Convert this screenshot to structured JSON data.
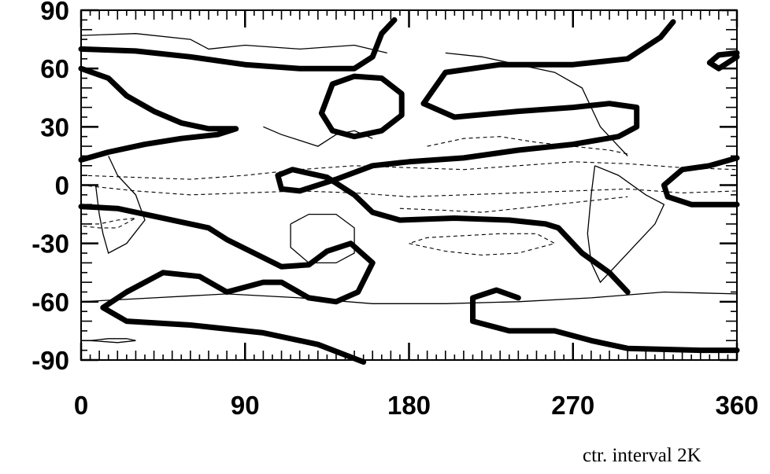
{
  "chart_data": {
    "type": "contour",
    "title": "",
    "xlabel": "",
    "ylabel": "",
    "xlim": [
      0,
      360
    ],
    "ylim": [
      -90,
      90
    ],
    "x_ticks": [
      "0",
      "90",
      "180",
      "270",
      "360"
    ],
    "y_ticks": [
      "90",
      "60",
      "30",
      "0",
      "-30",
      "-60",
      "-90"
    ],
    "annotation": "ctr. interval 2K",
    "contour_interval_K": 2,
    "grid": false,
    "series": [
      {
        "style": "thick",
        "points": [
          [
            0,
            70
          ],
          [
            30,
            69
          ],
          [
            60,
            66
          ],
          [
            90,
            62
          ],
          [
            120,
            60
          ],
          [
            150,
            60
          ],
          [
            160,
            66
          ],
          [
            165,
            78
          ],
          [
            172,
            85
          ]
        ]
      },
      {
        "style": "thick",
        "points": [
          [
            0,
            60
          ],
          [
            15,
            55
          ],
          [
            25,
            46
          ],
          [
            40,
            38
          ],
          [
            55,
            32
          ],
          [
            70,
            29
          ],
          [
            85,
            29
          ],
          [
            75,
            26
          ],
          [
            55,
            24
          ],
          [
            35,
            21
          ],
          [
            15,
            17
          ],
          [
            0,
            13
          ]
        ]
      },
      {
        "style": "thick",
        "points": [
          [
            138,
            52
          ],
          [
            150,
            56
          ],
          [
            165,
            55
          ],
          [
            176,
            47
          ],
          [
            176,
            36
          ],
          [
            165,
            28
          ],
          [
            150,
            25
          ],
          [
            138,
            28
          ],
          [
            132,
            37
          ],
          [
            138,
            52
          ]
        ]
      },
      {
        "style": "thick",
        "points": [
          [
            188,
            42
          ],
          [
            200,
            58
          ],
          [
            230,
            62
          ],
          [
            270,
            62
          ],
          [
            300,
            65
          ],
          [
            318,
            76
          ],
          [
            325,
            84
          ]
        ]
      },
      {
        "style": "thick",
        "points": [
          [
            188,
            42
          ],
          [
            205,
            35
          ],
          [
            240,
            38
          ],
          [
            270,
            40
          ],
          [
            290,
            42
          ],
          [
            305,
            40
          ],
          [
            305,
            30
          ],
          [
            295,
            25
          ],
          [
            270,
            21
          ],
          [
            240,
            18
          ],
          [
            210,
            14
          ],
          [
            180,
            12
          ],
          [
            160,
            10
          ],
          [
            140,
            3
          ],
          [
            120,
            -3
          ],
          [
            110,
            -2
          ],
          [
            108,
            5
          ],
          [
            116,
            8
          ],
          [
            135,
            4
          ],
          [
            150,
            -5
          ],
          [
            160,
            -14
          ],
          [
            175,
            -18
          ],
          [
            205,
            -17
          ],
          [
            235,
            -18
          ],
          [
            255,
            -20
          ],
          [
            262,
            -22
          ],
          [
            275,
            -35
          ],
          [
            290,
            -45
          ],
          [
            300,
            -55
          ]
        ]
      },
      {
        "style": "thick",
        "points": [
          [
            0,
            -11
          ],
          [
            20,
            -12
          ],
          [
            40,
            -16
          ],
          [
            60,
            -20
          ],
          [
            70,
            -22
          ],
          [
            80,
            -28
          ],
          [
            95,
            -35
          ],
          [
            110,
            -42
          ],
          [
            125,
            -41
          ],
          [
            135,
            -34
          ],
          [
            148,
            -30
          ],
          [
            160,
            -40
          ],
          [
            152,
            -55
          ],
          [
            140,
            -60
          ],
          [
            125,
            -58
          ],
          [
            110,
            -50
          ],
          [
            100,
            -50
          ],
          [
            80,
            -55
          ],
          [
            65,
            -47
          ],
          [
            45,
            -45
          ],
          [
            25,
            -55
          ],
          [
            12,
            -63
          ],
          [
            25,
            -70
          ],
          [
            60,
            -72
          ],
          [
            100,
            -76
          ],
          [
            130,
            -82
          ],
          [
            155,
            -91
          ]
        ]
      },
      {
        "style": "thick",
        "points": [
          [
            240,
            -58
          ],
          [
            228,
            -54
          ],
          [
            215,
            -58
          ],
          [
            215,
            -70
          ],
          [
            235,
            -75
          ],
          [
            260,
            -75
          ],
          [
            280,
            -80
          ],
          [
            300,
            -84
          ],
          [
            340,
            -85
          ],
          [
            360,
            -85
          ]
        ]
      },
      {
        "style": "thick",
        "points": [
          [
            360,
            14
          ],
          [
            345,
            10
          ],
          [
            330,
            8
          ],
          [
            320,
            0
          ],
          [
            322,
            -6
          ],
          [
            335,
            -10
          ],
          [
            360,
            -10
          ]
        ]
      },
      {
        "style": "thick",
        "points": [
          [
            360,
            66
          ],
          [
            350,
            60
          ],
          [
            345,
            63
          ],
          [
            350,
            67
          ],
          [
            360,
            68
          ]
        ]
      },
      {
        "style": "thin",
        "points": [
          [
            0,
            -60
          ],
          [
            40,
            -58
          ],
          [
            80,
            -56
          ],
          [
            120,
            -58
          ],
          [
            160,
            -61
          ],
          [
            200,
            -61
          ],
          [
            240,
            -60
          ],
          [
            280,
            -58
          ],
          [
            320,
            -55
          ],
          [
            360,
            -56
          ]
        ]
      },
      {
        "style": "thin",
        "points": [
          [
            5,
            -80
          ],
          [
            15,
            -79
          ],
          [
            25,
            -79
          ],
          [
            30,
            -80
          ],
          [
            20,
            -81
          ],
          [
            5,
            -80
          ]
        ]
      },
      {
        "style": "thin",
        "points": [
          [
            0,
            77
          ],
          [
            30,
            78
          ],
          [
            60,
            75
          ],
          [
            70,
            70
          ],
          [
            90,
            72
          ],
          [
            120,
            70
          ],
          [
            150,
            72
          ],
          [
            168,
            68
          ]
        ]
      },
      {
        "style": "thin",
        "points": [
          [
            100,
            30
          ],
          [
            110,
            26
          ],
          [
            120,
            23
          ],
          [
            130,
            20
          ],
          [
            140,
            26
          ],
          [
            150,
            28
          ],
          [
            160,
            24
          ]
        ]
      },
      {
        "style": "thin",
        "points": [
          [
            15,
            15
          ],
          [
            20,
            5
          ],
          [
            30,
            -5
          ],
          [
            35,
            -18
          ],
          [
            25,
            -30
          ],
          [
            15,
            -35
          ],
          [
            12,
            -25
          ],
          [
            10,
            -15
          ],
          [
            8,
            0
          ]
        ]
      },
      {
        "style": "thin",
        "points": [
          [
            115,
            -20
          ],
          [
            125,
            -15
          ],
          [
            140,
            -15
          ],
          [
            150,
            -22
          ],
          [
            150,
            -35
          ],
          [
            140,
            -40
          ],
          [
            125,
            -40
          ],
          [
            115,
            -32
          ],
          [
            115,
            -20
          ]
        ]
      },
      {
        "style": "thin",
        "points": [
          [
            282,
            10
          ],
          [
            295,
            5
          ],
          [
            310,
            -5
          ],
          [
            320,
            -10
          ],
          [
            315,
            -20
          ],
          [
            305,
            -30
          ],
          [
            295,
            -40
          ],
          [
            285,
            -50
          ],
          [
            280,
            -40
          ],
          [
            278,
            -25
          ],
          [
            280,
            -5
          ],
          [
            282,
            10
          ]
        ]
      },
      {
        "style": "thin",
        "points": [
          [
            200,
            68
          ],
          [
            220,
            66
          ],
          [
            240,
            62
          ],
          [
            260,
            58
          ],
          [
            275,
            50
          ],
          [
            280,
            40
          ],
          [
            285,
            30
          ],
          [
            295,
            20
          ],
          [
            300,
            15
          ]
        ]
      },
      {
        "style": "dashed",
        "points": [
          [
            0,
            0
          ],
          [
            30,
            -3
          ],
          [
            60,
            -5
          ],
          [
            90,
            -4
          ],
          [
            120,
            -3
          ],
          [
            150,
            -4
          ],
          [
            180,
            -6
          ],
          [
            210,
            -5
          ],
          [
            240,
            -4
          ],
          [
            270,
            -3
          ],
          [
            300,
            -2
          ],
          [
            330,
            -4
          ],
          [
            360,
            -3
          ]
        ]
      },
      {
        "style": "dashed",
        "points": [
          [
            0,
            5
          ],
          [
            30,
            4
          ],
          [
            60,
            3
          ],
          [
            90,
            5
          ],
          [
            120,
            8
          ],
          [
            150,
            10
          ],
          [
            180,
            9
          ],
          [
            210,
            8
          ],
          [
            240,
            10
          ],
          [
            270,
            12
          ],
          [
            300,
            11
          ],
          [
            330,
            9
          ],
          [
            360,
            8
          ]
        ]
      },
      {
        "style": "dashed",
        "points": [
          [
            180,
            -30
          ],
          [
            200,
            -34
          ],
          [
            220,
            -36
          ],
          [
            240,
            -35
          ],
          [
            260,
            -30
          ],
          [
            250,
            -25
          ],
          [
            230,
            -25
          ],
          [
            210,
            -26
          ],
          [
            190,
            -27
          ],
          [
            180,
            -30
          ]
        ]
      },
      {
        "style": "dashed",
        "points": [
          [
            190,
            20
          ],
          [
            210,
            24
          ],
          [
            230,
            25
          ],
          [
            250,
            22
          ],
          [
            270,
            20
          ],
          [
            290,
            18
          ],
          [
            300,
            16
          ]
        ]
      },
      {
        "style": "dashed",
        "points": [
          [
            0,
            -20
          ],
          [
            10,
            -20
          ],
          [
            20,
            -18
          ],
          [
            30,
            -17
          ],
          [
            20,
            -22
          ],
          [
            10,
            -22
          ],
          [
            0,
            -21
          ]
        ]
      },
      {
        "style": "dashed",
        "points": [
          [
            175,
            -12
          ],
          [
            200,
            -13
          ],
          [
            220,
            -14
          ],
          [
            240,
            -12
          ],
          [
            260,
            -10
          ],
          [
            280,
            -8
          ],
          [
            300,
            -6
          ]
        ]
      }
    ]
  }
}
